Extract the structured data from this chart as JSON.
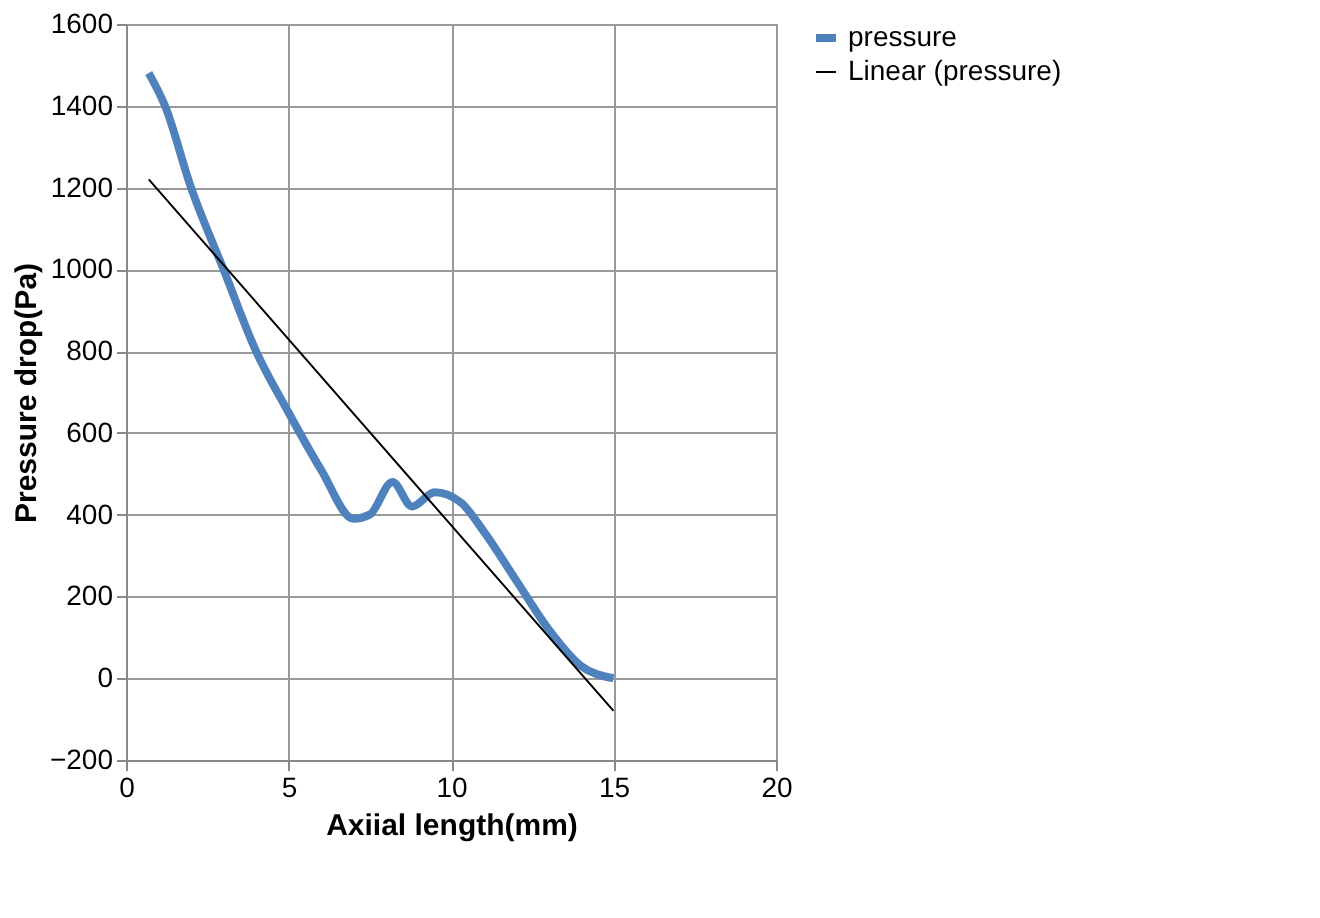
{
  "chart_data": {
    "type": "line",
    "xlabel": "Axiial length(mm)",
    "ylabel": "Pressure drop(Pa)",
    "series": [
      {
        "name": "pressure",
        "color": "#4f81bd",
        "x": [
          0.7,
          1.2,
          2,
          3,
          4,
          5,
          6,
          7,
          7.5,
          8.2,
          8.8,
          9.5,
          10.3,
          11,
          12,
          13,
          14,
          15
        ],
        "values": [
          1480,
          1400,
          1200,
          1000,
          800,
          650,
          510,
          390,
          400,
          480,
          420,
          455,
          430,
          360,
          240,
          120,
          30,
          0
        ]
      },
      {
        "name": "Linear (pressure)",
        "color": "#000000",
        "x": [
          0.7,
          15
        ],
        "values": [
          1220,
          -80
        ]
      }
    ],
    "xlim": [
      0,
      20
    ],
    "xticks": [
      0,
      5,
      10,
      15,
      20
    ],
    "ylim": [
      -200,
      1600
    ],
    "yticks": [
      -200,
      0,
      200,
      400,
      600,
      800,
      1000,
      1200,
      1400,
      1600
    ],
    "grid": true,
    "legend": "right",
    "marker": "none"
  }
}
